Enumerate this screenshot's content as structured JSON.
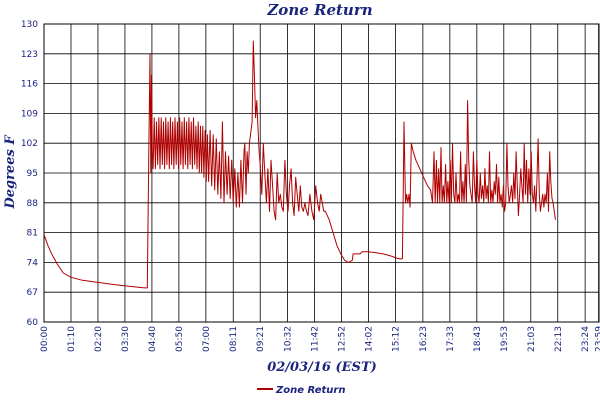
{
  "chart_data": {
    "type": "line",
    "title": "Zone Return",
    "xlabel": "02/03/16 (EST)",
    "ylabel": "Degrees F",
    "ylim": [
      60,
      130
    ],
    "yticks": [
      60,
      67,
      74,
      81,
      88,
      95,
      102,
      109,
      116,
      123,
      130
    ],
    "xlim": [
      0,
      1440
    ],
    "xtick_labels": [
      "00:00",
      "01:10",
      "02:20",
      "03:30",
      "04:40",
      "05:50",
      "07:00",
      "08:11",
      "09:21",
      "10:32",
      "11:42",
      "12:52",
      "14:02",
      "15:12",
      "16:23",
      "17:33",
      "18:43",
      "19:53",
      "21:03",
      "22:13",
      "23:24",
      "23:59"
    ],
    "xtick_minutes": [
      0,
      70,
      140,
      210,
      280,
      350,
      420,
      491,
      561,
      632,
      702,
      772,
      842,
      912,
      983,
      1053,
      1123,
      1193,
      1263,
      1333,
      1404,
      1439
    ],
    "grid": true,
    "legend_position": "bottom-center",
    "series": [
      {
        "name": "Zone Return",
        "color": "#b00000",
        "points": [
          [
            0,
            80.5
          ],
          [
            10,
            78
          ],
          [
            20,
            76
          ],
          [
            35,
            73.5
          ],
          [
            50,
            71.5
          ],
          [
            70,
            70.5
          ],
          [
            100,
            69.8
          ],
          [
            140,
            69.3
          ],
          [
            180,
            68.8
          ],
          [
            220,
            68.4
          ],
          [
            260,
            68.0
          ],
          [
            268,
            68.0
          ],
          [
            272,
            100
          ],
          [
            275,
            123
          ],
          [
            277,
            95
          ],
          [
            279,
            118
          ],
          [
            281,
            100
          ],
          [
            283,
            96
          ],
          [
            286,
            108
          ],
          [
            289,
            96
          ],
          [
            292,
            107
          ],
          [
            295,
            97
          ],
          [
            298,
            108
          ],
          [
            301,
            96
          ],
          [
            304,
            108
          ],
          [
            307,
            97
          ],
          [
            310,
            107
          ],
          [
            313,
            96
          ],
          [
            316,
            108
          ],
          [
            319,
            97
          ],
          [
            322,
            107
          ],
          [
            325,
            96
          ],
          [
            328,
            108
          ],
          [
            331,
            97
          ],
          [
            334,
            107
          ],
          [
            337,
            96
          ],
          [
            340,
            108
          ],
          [
            343,
            97
          ],
          [
            346,
            107
          ],
          [
            349,
            96
          ],
          [
            352,
            108
          ],
          [
            355,
            97
          ],
          [
            358,
            107
          ],
          [
            361,
            96
          ],
          [
            364,
            108
          ],
          [
            367,
            97
          ],
          [
            370,
            107
          ],
          [
            373,
            96
          ],
          [
            376,
            108
          ],
          [
            379,
            97
          ],
          [
            382,
            107
          ],
          [
            385,
            96
          ],
          [
            388,
            108
          ],
          [
            391,
            97
          ],
          [
            394,
            106
          ],
          [
            397,
            96
          ],
          [
            400,
            107
          ],
          [
            403,
            95
          ],
          [
            406,
            106
          ],
          [
            409,
            95
          ],
          [
            412,
            106
          ],
          [
            415,
            94
          ],
          [
            418,
            105
          ],
          [
            421,
            93
          ],
          [
            424,
            104
          ],
          [
            427,
            93
          ],
          [
            431,
            105
          ],
          [
            435,
            92
          ],
          [
            439,
            104
          ],
          [
            443,
            91
          ],
          [
            447,
            103
          ],
          [
            451,
            90
          ],
          [
            455,
            100
          ],
          [
            459,
            89
          ],
          [
            463,
            107
          ],
          [
            467,
            88
          ],
          [
            471,
            100
          ],
          [
            475,
            90
          ],
          [
            479,
            99
          ],
          [
            483,
            89
          ],
          [
            487,
            98
          ],
          [
            491,
            88
          ],
          [
            495,
            96
          ],
          [
            499,
            87
          ],
          [
            503,
            95
          ],
          [
            507,
            87
          ],
          [
            511,
            98
          ],
          [
            515,
            88
          ],
          [
            519,
            100
          ],
          [
            521,
            102
          ],
          [
            524,
            90
          ],
          [
            527,
            100
          ],
          [
            530,
            95
          ],
          [
            533,
            102
          ],
          [
            540,
            107
          ],
          [
            543,
            126
          ],
          [
            546,
            118
          ],
          [
            549,
            108
          ],
          [
            552,
            112
          ],
          [
            555,
            106
          ],
          [
            558,
            100
          ],
          [
            561,
            97
          ],
          [
            565,
            90
          ],
          [
            569,
            102
          ],
          [
            573,
            95
          ],
          [
            577,
            88
          ],
          [
            581,
            96
          ],
          [
            585,
            86
          ],
          [
            589,
            98
          ],
          [
            593,
            92
          ],
          [
            597,
            86
          ],
          [
            601,
            84
          ],
          [
            605,
            95
          ],
          [
            609,
            88
          ],
          [
            613,
            90
          ],
          [
            617,
            87
          ],
          [
            621,
            86
          ],
          [
            625,
            98
          ],
          [
            629,
            90
          ],
          [
            633,
            86
          ],
          [
            637,
            92
          ],
          [
            641,
            96
          ],
          [
            645,
            88
          ],
          [
            649,
            85
          ],
          [
            653,
            94
          ],
          [
            657,
            90
          ],
          [
            661,
            86
          ],
          [
            665,
            92
          ],
          [
            669,
            87
          ],
          [
            673,
            86
          ],
          [
            677,
            88
          ],
          [
            681,
            86
          ],
          [
            685,
            85
          ],
          [
            690,
            90
          ],
          [
            695,
            86
          ],
          [
            700,
            84
          ],
          [
            705,
            92
          ],
          [
            710,
            88
          ],
          [
            714,
            86
          ],
          [
            718,
            90
          ],
          [
            722,
            88
          ],
          [
            726,
            86
          ],
          [
            730,
            86
          ],
          [
            740,
            84
          ],
          [
            750,
            81
          ],
          [
            760,
            78
          ],
          [
            770,
            76
          ],
          [
            780,
            74.5
          ],
          [
            790,
            74.0
          ],
          [
            800,
            74.5
          ],
          [
            802,
            76
          ],
          [
            810,
            76.0
          ],
          [
            820,
            76.0
          ],
          [
            825,
            76.5
          ],
          [
            840,
            76.5
          ],
          [
            860,
            76.3
          ],
          [
            880,
            76.0
          ],
          [
            900,
            75.5
          ],
          [
            915,
            75.0
          ],
          [
            925,
            74.8
          ],
          [
            930,
            74.9
          ],
          [
            932,
            90
          ],
          [
            934,
            107
          ],
          [
            936,
            97
          ],
          [
            938,
            88
          ],
          [
            941,
            90
          ],
          [
            944,
            88
          ],
          [
            947,
            90
          ],
          [
            950,
            87
          ],
          [
            953,
            102
          ],
          [
            958,
            100
          ],
          [
            965,
            98
          ],
          [
            975,
            96
          ],
          [
            985,
            94
          ],
          [
            995,
            92
          ],
          [
            1003,
            91
          ],
          [
            1008,
            88
          ],
          [
            1012,
            100
          ],
          [
            1015,
            88
          ],
          [
            1018,
            98
          ],
          [
            1021,
            88
          ],
          [
            1024,
            96
          ],
          [
            1027,
            88
          ],
          [
            1030,
            101
          ],
          [
            1033,
            88
          ],
          [
            1036,
            92
          ],
          [
            1039,
            88
          ],
          [
            1042,
            97
          ],
          [
            1045,
            88
          ],
          [
            1048,
            93
          ],
          [
            1051,
            88
          ],
          [
            1054,
            98
          ],
          [
            1057,
            88
          ],
          [
            1060,
            102
          ],
          [
            1063,
            90
          ],
          [
            1066,
            88
          ],
          [
            1069,
            95
          ],
          [
            1072,
            88
          ],
          [
            1075,
            90
          ],
          [
            1078,
            88
          ],
          [
            1081,
            100
          ],
          [
            1084,
            88
          ],
          [
            1087,
            93
          ],
          [
            1090,
            88
          ],
          [
            1093,
            97
          ],
          [
            1096,
            88
          ],
          [
            1099,
            112
          ],
          [
            1102,
            98
          ],
          [
            1105,
            92
          ],
          [
            1108,
            90
          ],
          [
            1111,
            88
          ],
          [
            1114,
            100
          ],
          [
            1117,
            92
          ],
          [
            1120,
            88
          ],
          [
            1123,
            98
          ],
          [
            1126,
            90
          ],
          [
            1129,
            88
          ],
          [
            1132,
            95
          ],
          [
            1135,
            89
          ],
          [
            1138,
            92
          ],
          [
            1141,
            88
          ],
          [
            1144,
            96
          ],
          [
            1147,
            89
          ],
          [
            1150,
            92
          ],
          [
            1153,
            88
          ],
          [
            1156,
            100
          ],
          [
            1159,
            88
          ],
          [
            1162,
            91
          ],
          [
            1165,
            88
          ],
          [
            1168,
            93
          ],
          [
            1171,
            90
          ],
          [
            1174,
            97
          ],
          [
            1177,
            88
          ],
          [
            1180,
            94
          ],
          [
            1183,
            88
          ],
          [
            1186,
            90
          ],
          [
            1189,
            87
          ],
          [
            1192,
            92
          ],
          [
            1195,
            86
          ],
          [
            1198,
            88
          ],
          [
            1201,
            102
          ],
          [
            1204,
            92
          ],
          [
            1207,
            88
          ],
          [
            1210,
            90
          ],
          [
            1213,
            92
          ],
          [
            1216,
            88
          ],
          [
            1219,
            95
          ],
          [
            1222,
            89
          ],
          [
            1225,
            100
          ],
          [
            1228,
            92
          ],
          [
            1231,
            85
          ],
          [
            1234,
            90
          ],
          [
            1237,
            96
          ],
          [
            1240,
            92
          ],
          [
            1243,
            88
          ],
          [
            1246,
            102
          ],
          [
            1249,
            90
          ],
          [
            1252,
            98
          ],
          [
            1255,
            88
          ],
          [
            1258,
            96
          ],
          [
            1261,
            90
          ],
          [
            1264,
            100
          ],
          [
            1267,
            90
          ],
          [
            1270,
            88
          ],
          [
            1273,
            92
          ],
          [
            1276,
            86
          ],
          [
            1279,
            93
          ],
          [
            1282,
            103
          ],
          [
            1285,
            90
          ],
          [
            1288,
            86
          ],
          [
            1291,
            88
          ],
          [
            1294,
            90
          ],
          [
            1297,
            87
          ],
          [
            1300,
            90
          ],
          [
            1303,
            88
          ],
          [
            1306,
            95
          ],
          [
            1309,
            86
          ],
          [
            1312,
            100
          ],
          [
            1315,
            93
          ],
          [
            1318,
            89
          ],
          [
            1321,
            88
          ],
          [
            1324,
            86
          ],
          [
            1327,
            84
          ]
        ]
      }
    ]
  },
  "legend": {
    "label": "Zone Return"
  }
}
